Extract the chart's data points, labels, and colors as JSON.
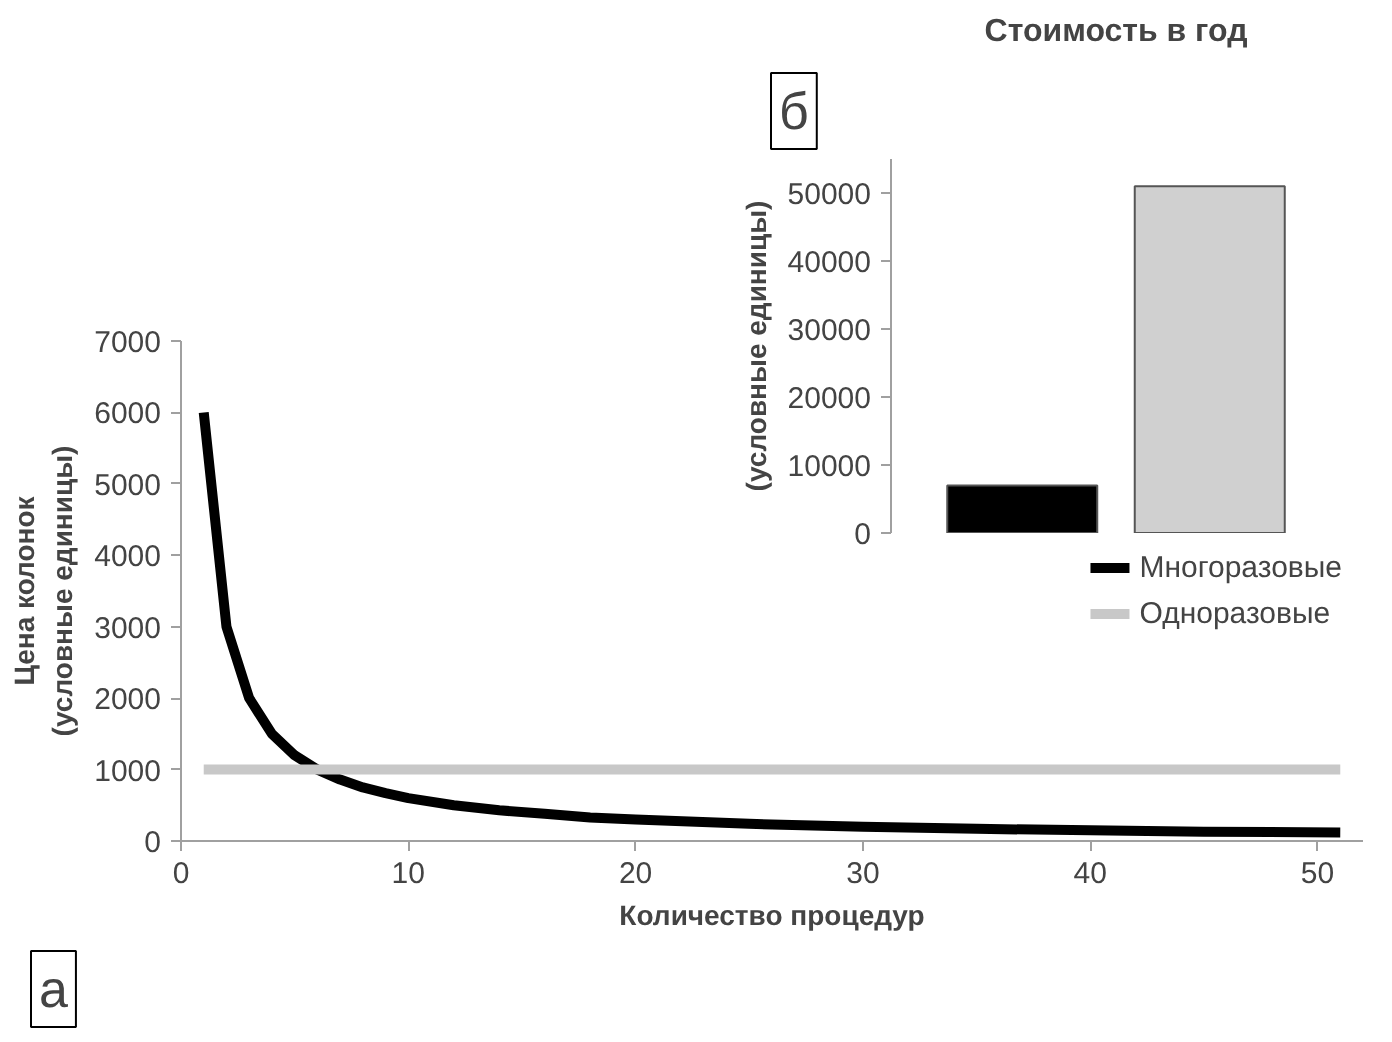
{
  "chart_data": [
    {
      "type": "line",
      "xlabel": "Количество процедур",
      "ylabel": "Цена колонок\n(условные единицы)",
      "annotations": [
        "а"
      ],
      "x": [
        1,
        2,
        3,
        4,
        5,
        6,
        7,
        8,
        9,
        10,
        12,
        14,
        16,
        18,
        20,
        25,
        30,
        35,
        40,
        45,
        51
      ],
      "series": [
        {
          "name": "Многоразовые",
          "color": "#000000",
          "values": [
            6000,
            3000,
            2000,
            1500,
            1200,
            1000,
            860,
            750,
            670,
            600,
            500,
            430,
            380,
            330,
            300,
            240,
            200,
            170,
            150,
            130,
            120
          ]
        },
        {
          "name": "Одноразовые",
          "color": "#c8c8c8",
          "x": [
            1,
            51
          ],
          "values": [
            1000,
            1000
          ]
        }
      ],
      "xlim": [
        0,
        52
      ],
      "xticks": [
        0,
        10,
        20,
        30,
        40,
        50
      ],
      "ylim": [
        0,
        7000
      ],
      "yticks": [
        0,
        1000,
        2000,
        3000,
        4000,
        5000,
        6000,
        7000
      ],
      "legend": "right",
      "marker": "none",
      "line_style": "solid"
    },
    {
      "type": "bar",
      "title": "Стоимость в год",
      "ylabel": "(условные единицы)",
      "annotations": [
        "б"
      ],
      "categories": [
        null,
        null
      ],
      "colors": [
        "#000000",
        "#d0d0d0"
      ],
      "values": [
        7000,
        51000
      ],
      "ylim": [
        0,
        55000
      ],
      "yticks": [
        0,
        10000,
        20000,
        30000,
        40000,
        50000
      ],
      "tick_labels": "y"
    }
  ]
}
